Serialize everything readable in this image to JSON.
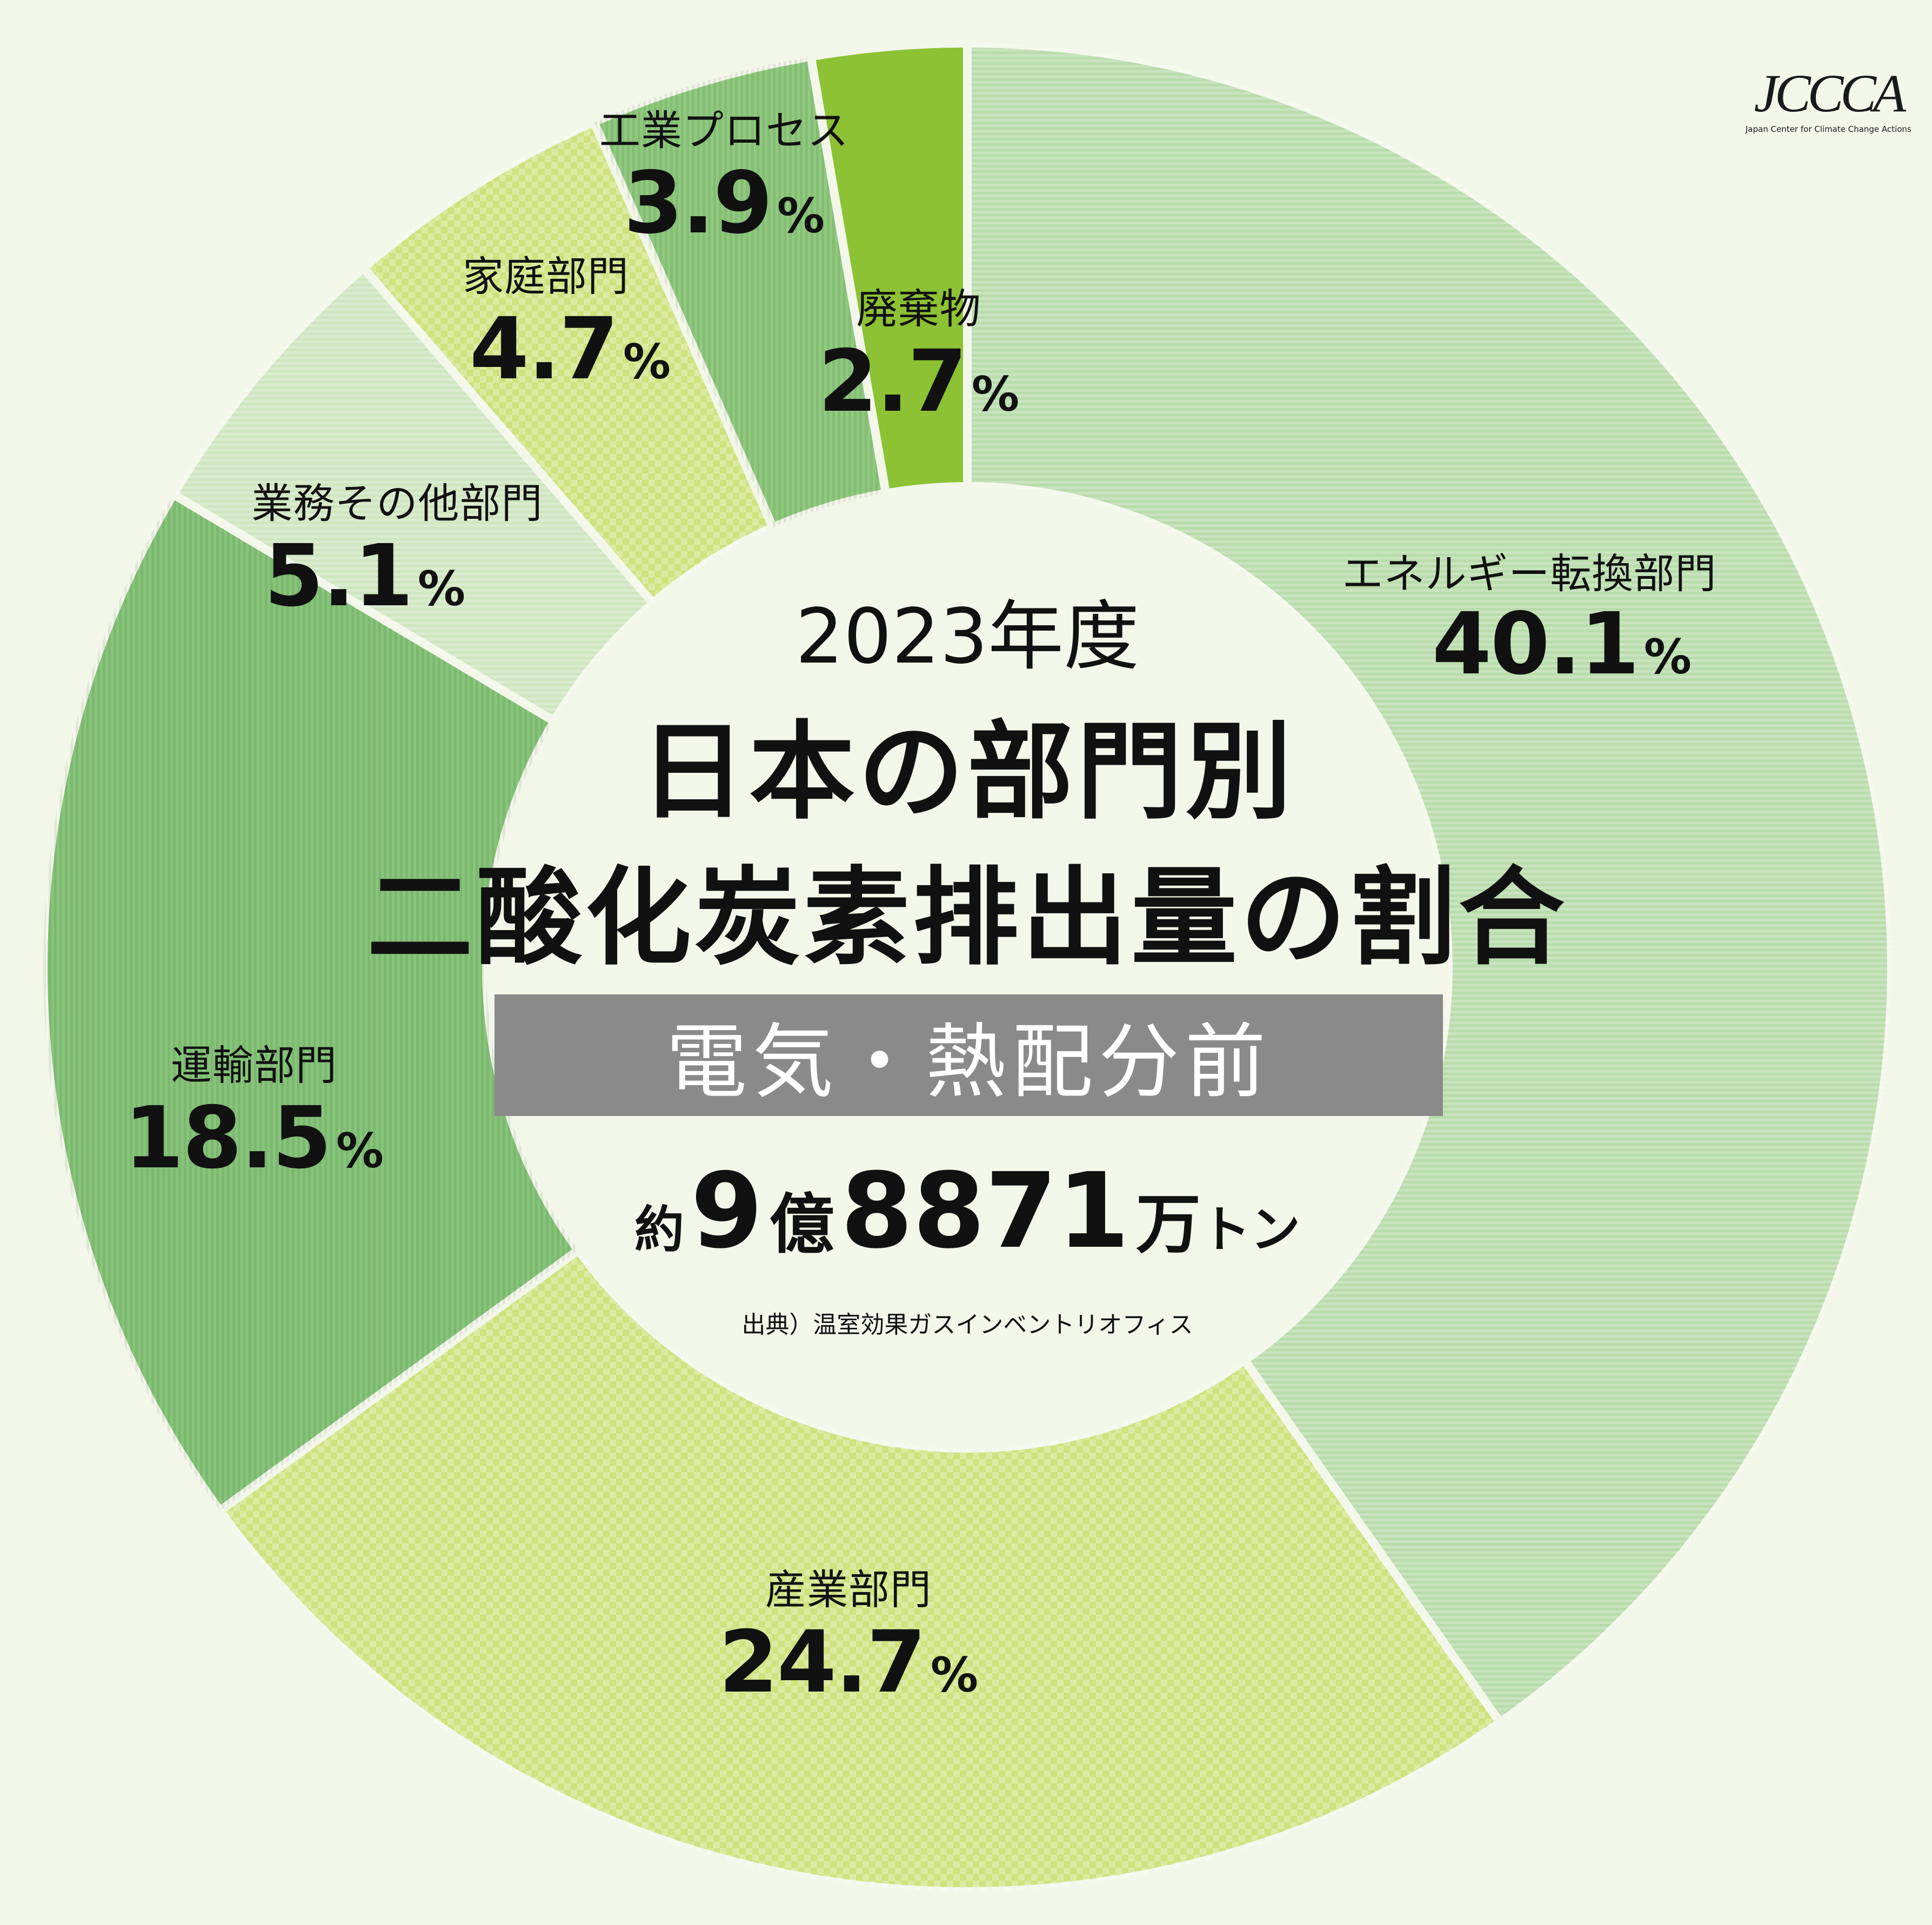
{
  "colors": {
    "background": "#f3f7ea",
    "band": "#8a8a8a"
  },
  "logo": {
    "mark": "JCCCA",
    "subtitle": "Japan Center for Climate Change Actions"
  },
  "center": {
    "year": "2023年度",
    "title_line1": "日本の部門別",
    "title_line2": "二酸化炭素排出量の割合",
    "band": "電気・熱配分前",
    "total_prefix": "約",
    "total_oku": "9",
    "total_oku_unit": "億",
    "total_man": "8871",
    "total_man_unit": "万",
    "total_unit": "トン",
    "source": "出典）温室効果ガスインベントリオフィス"
  },
  "chart_data": {
    "type": "pie",
    "title": "日本の部門別二酸化炭素排出量の割合",
    "subtitle": "2023年度 電気・熱配分前",
    "unit": "%",
    "slices": [
      {
        "label": "エネルギー転換部門",
        "value": 40.1,
        "value_text": "40.1",
        "pct": "%",
        "color": "#b9dcac",
        "pattern": "hstripe",
        "key": "energy"
      },
      {
        "label": "産業部門",
        "value": 24.7,
        "value_text": "24.7",
        "pct": "%",
        "color": "#cfe27e",
        "pattern": "check",
        "key": "industry"
      },
      {
        "label": "運輸部門",
        "value": 18.5,
        "value_text": "18.5",
        "pct": "%",
        "color": "#86c57a",
        "pattern": "vstripe",
        "key": "transport"
      },
      {
        "label": "業務その他部門",
        "value": 5.1,
        "value_text": "5.1",
        "pct": "%",
        "color": "#cfe6c0",
        "pattern": "hstripe",
        "key": "commercial"
      },
      {
        "label": "家庭部門",
        "value": 4.7,
        "value_text": "4.7",
        "pct": "%",
        "color": "#cfe27e",
        "pattern": "check",
        "key": "household"
      },
      {
        "label": "工業プロセス",
        "value": 3.9,
        "value_text": "3.9",
        "pct": "%",
        "color": "#8fca7e",
        "pattern": "vstripe",
        "key": "process"
      },
      {
        "label": "廃棄物",
        "value": 2.7,
        "value_text": "2.7",
        "pct": "%",
        "color": "#8cc233",
        "pattern": "none",
        "key": "waste"
      }
    ]
  }
}
